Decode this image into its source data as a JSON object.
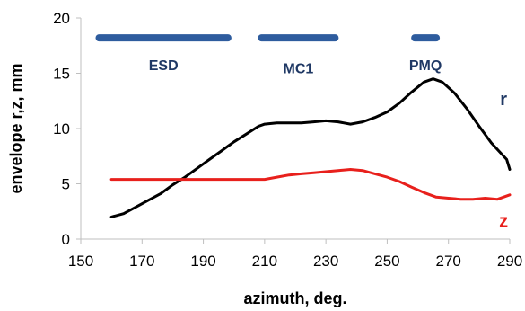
{
  "chart_data": {
    "type": "line",
    "title": "",
    "xlabel": "azimuth, deg.",
    "ylabel": "envelope r,z, mm",
    "xlim": [
      150,
      290
    ],
    "ylim": [
      0,
      20
    ],
    "xticks": [
      150,
      170,
      190,
      210,
      230,
      250,
      270,
      290
    ],
    "yticks": [
      0,
      5,
      10,
      15,
      20
    ],
    "grid": false,
    "series": [
      {
        "name": "r",
        "color": "#000000",
        "x": [
          160,
          164,
          168,
          172,
          176,
          180,
          184,
          188,
          192,
          196,
          200,
          204,
          208,
          210,
          214,
          218,
          222,
          226,
          230,
          234,
          238,
          242,
          246,
          250,
          254,
          258,
          262,
          265,
          268,
          272,
          276,
          280,
          284,
          287,
          289,
          290
        ],
        "values": [
          2.0,
          2.3,
          2.9,
          3.5,
          4.1,
          4.9,
          5.6,
          6.4,
          7.2,
          8.0,
          8.8,
          9.5,
          10.2,
          10.4,
          10.5,
          10.5,
          10.5,
          10.6,
          10.7,
          10.6,
          10.4,
          10.6,
          11.0,
          11.5,
          12.3,
          13.3,
          14.2,
          14.5,
          14.2,
          13.2,
          11.8,
          10.2,
          8.7,
          7.8,
          7.2,
          6.3
        ]
      },
      {
        "name": "z",
        "color": "#e8201c",
        "x": [
          160,
          170,
          180,
          190,
          200,
          206,
          210,
          214,
          218,
          222,
          226,
          230,
          234,
          238,
          242,
          246,
          250,
          254,
          258,
          262,
          266,
          270,
          274,
          278,
          282,
          286,
          290
        ],
        "values": [
          5.4,
          5.4,
          5.4,
          5.4,
          5.4,
          5.4,
          5.4,
          5.6,
          5.8,
          5.9,
          6.0,
          6.1,
          6.2,
          6.3,
          6.2,
          5.9,
          5.6,
          5.2,
          4.7,
          4.2,
          3.8,
          3.7,
          3.6,
          3.6,
          3.7,
          3.6,
          4.0
        ]
      }
    ],
    "annotations": [
      {
        "label": "r",
        "color": "#1f3864",
        "x": 288,
        "y": 12.1
      },
      {
        "label": "z",
        "color": "#e8201c",
        "x": 288,
        "y": 1.1
      }
    ],
    "regions": [
      {
        "label": "ESD",
        "x_start": 156,
        "x_end": 198,
        "y": 18.2,
        "label_y": 15.7,
        "color": "#2e5c9e",
        "label_color": "#1f3864"
      },
      {
        "label": "MC1",
        "x_start": 209,
        "x_end": 233,
        "y": 18.2,
        "label_y": 15.4,
        "color": "#2e5c9e",
        "label_color": "#1f3864"
      },
      {
        "label": "PMQ",
        "x_start": 259,
        "x_end": 266,
        "y": 18.2,
        "label_y": 15.7,
        "color": "#2e5c9e",
        "label_color": "#1f3864"
      }
    ]
  }
}
